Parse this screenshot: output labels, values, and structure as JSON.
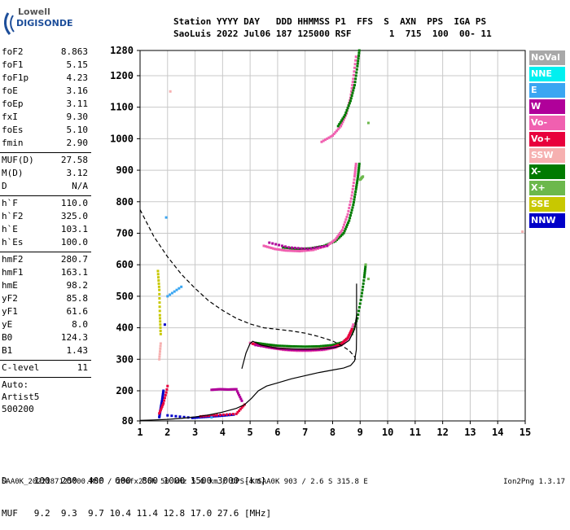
{
  "logo": {
    "line1": "Lowell",
    "line2": "DIGISONDE"
  },
  "header": {
    "line1": "Station YYYY DAY   DDD HHMMSS P1  FFS  S  AXN  PPS  IGA PS",
    "line2": "SaoLuis 2022 Jul06 187 125000 RSF       1  715  100  00- 11"
  },
  "params": [
    {
      "label": "foF2",
      "value": "8.863"
    },
    {
      "label": "foF1",
      "value": "5.15"
    },
    {
      "label": "foF1p",
      "value": "4.23"
    },
    {
      "label": "foE",
      "value": "3.16"
    },
    {
      "label": "foEp",
      "value": "3.11"
    },
    {
      "label": "fxI",
      "value": "9.30"
    },
    {
      "label": "foEs",
      "value": "5.10"
    },
    {
      "label": "fmin",
      "value": "2.90"
    },
    {
      "sep": true
    },
    {
      "label": "MUF(D)",
      "value": "27.58"
    },
    {
      "label": "M(D)",
      "value": "3.12"
    },
    {
      "label": "D",
      "value": "N/A"
    },
    {
      "sep": true
    },
    {
      "label": "h`F",
      "value": "110.0"
    },
    {
      "label": "h`F2",
      "value": "325.0"
    },
    {
      "label": "h`E",
      "value": "103.1"
    },
    {
      "label": "h`Es",
      "value": "100.0"
    },
    {
      "sep": true
    },
    {
      "label": "hmF2",
      "value": "280.7"
    },
    {
      "label": "hmF1",
      "value": "163.1"
    },
    {
      "label": "hmE",
      "value": "98.2"
    },
    {
      "label": "yF2",
      "value": "85.8"
    },
    {
      "label": "yF1",
      "value": "61.6"
    },
    {
      "label": "yE",
      "value": "8.0"
    },
    {
      "label": "B0",
      "value": "124.3"
    },
    {
      "label": "B1",
      "value": "1.43"
    },
    {
      "sep": true
    },
    {
      "label": "C-level",
      "value": "11"
    },
    {
      "sep": true
    },
    {
      "text": "Auto:"
    },
    {
      "text": "Artist5"
    },
    {
      "text": "500200"
    }
  ],
  "legend": [
    {
      "label": "NoVal",
      "color": "#a8a8a8"
    },
    {
      "label": "NNE",
      "color": "#00f0f0"
    },
    {
      "label": "E",
      "color": "#3aa6f2"
    },
    {
      "label": "W",
      "color": "#b0009a"
    },
    {
      "label": "Vo-",
      "color": "#f060b0"
    },
    {
      "label": "Vo+",
      "color": "#e8003c"
    },
    {
      "label": "SSW",
      "color": "#f6b0b0"
    },
    {
      "label": "X-",
      "color": "#007a00"
    },
    {
      "label": "X+",
      "color": "#6cb84c"
    },
    {
      "label": "SSE",
      "color": "#c8c800"
    },
    {
      "label": "NNW",
      "color": "#0000c8"
    }
  ],
  "bottom": {
    "row1": "D     100  200  400  600  800 1000 1500 3000 [km]",
    "row2": "MUF   9.2  9.3  9.7 10.4 11.4 12.8 17.0 27.6 [MHz]"
  },
  "footer": {
    "left": "SAA0K_2022187125000.RSF / 280fx256h 50 kHz 5.0 km / DPS-4 SAA0K 903 / 2.6 S 315.8 E",
    "right": "Ion2Png 1.3.17"
  },
  "chart_data": {
    "type": "scatter",
    "xlim": [
      1,
      15
    ],
    "ylim": [
      80,
      1280
    ],
    "x_ticks": [
      "1",
      "2",
      "3",
      "4",
      "5",
      "6",
      "7",
      "8",
      "9",
      "10",
      "11",
      "12",
      "13",
      "14",
      "15"
    ],
    "y_ticks": [
      "80",
      "200",
      "300",
      "400",
      "500",
      "600",
      "700",
      "800",
      "900",
      "1000",
      "1100",
      "1200",
      "1280"
    ],
    "grid": true,
    "lines": [
      {
        "style": "solid",
        "points": [
          [
            1.0,
            82
          ],
          [
            1.5,
            84
          ],
          [
            2.0,
            86
          ],
          [
            2.5,
            90
          ],
          [
            3.0,
            96
          ],
          [
            3.5,
            104
          ],
          [
            4.0,
            115
          ],
          [
            4.5,
            130
          ],
          [
            4.8,
            145
          ],
          [
            5.05,
            170
          ],
          [
            5.3,
            200
          ],
          [
            5.6,
            215
          ],
          [
            6.0,
            225
          ],
          [
            6.5,
            238
          ],
          [
            7.0,
            248
          ],
          [
            7.5,
            258
          ],
          [
            8.0,
            266
          ],
          [
            8.4,
            272
          ],
          [
            8.65,
            280
          ],
          [
            8.8,
            295
          ],
          [
            8.86,
            330
          ],
          [
            8.87,
            380
          ],
          [
            8.87,
            440
          ],
          [
            8.87,
            540
          ]
        ]
      },
      {
        "style": "solid",
        "points": [
          [
            4.7,
            270
          ],
          [
            4.85,
            320
          ],
          [
            5.0,
            350
          ],
          [
            5.1,
            357
          ],
          [
            5.4,
            345
          ],
          [
            6.0,
            335
          ],
          [
            6.5,
            333
          ],
          [
            7.0,
            332
          ],
          [
            7.5,
            333
          ],
          [
            8.0,
            336
          ],
          [
            8.3,
            342
          ],
          [
            8.6,
            360
          ],
          [
            8.8,
            395
          ],
          [
            8.87,
            440
          ]
        ]
      },
      {
        "style": "dashed",
        "points": [
          [
            1.0,
            775
          ],
          [
            1.5,
            690
          ],
          [
            2.0,
            625
          ],
          [
            2.5,
            570
          ],
          [
            3.0,
            525
          ],
          [
            3.5,
            485
          ],
          [
            4.0,
            455
          ],
          [
            4.5,
            430
          ],
          [
            5.0,
            412
          ],
          [
            5.5,
            400
          ],
          [
            6.0,
            395
          ],
          [
            6.5,
            390
          ],
          [
            7.0,
            383
          ],
          [
            7.5,
            372
          ],
          [
            8.0,
            358
          ],
          [
            8.3,
            345
          ],
          [
            8.6,
            328
          ],
          [
            8.8,
            308
          ],
          [
            8.85,
            295
          ]
        ]
      }
    ],
    "traces": [
      {
        "series": "X-",
        "color": "#007a00",
        "points": [
          [
            5.2,
            352
          ],
          [
            5.6,
            347
          ],
          [
            6.0,
            343
          ],
          [
            6.5,
            341
          ],
          [
            7.0,
            340
          ],
          [
            7.5,
            341
          ],
          [
            8.0,
            345
          ],
          [
            8.4,
            355
          ],
          [
            8.7,
            380
          ],
          [
            8.9,
            430
          ],
          [
            9.05,
            500
          ],
          [
            9.15,
            560
          ],
          [
            9.2,
            600
          ]
        ]
      },
      {
        "series": "Vo-",
        "color": "#f060b0",
        "points": [
          [
            5.0,
            352
          ],
          [
            5.3,
            345
          ],
          [
            5.7,
            337
          ],
          [
            6.2,
            330
          ],
          [
            6.7,
            327
          ],
          [
            7.2,
            327
          ],
          [
            7.7,
            330
          ],
          [
            8.1,
            337
          ],
          [
            8.4,
            350
          ],
          [
            8.6,
            370
          ],
          [
            8.75,
            410
          ]
        ]
      },
      {
        "series": "Vo+",
        "color": "#e8003c",
        "points": [
          [
            5.1,
            349
          ],
          [
            5.5,
            341
          ],
          [
            6.0,
            334
          ],
          [
            6.5,
            331
          ],
          [
            7.0,
            330
          ],
          [
            7.5,
            332
          ],
          [
            8.0,
            338
          ],
          [
            8.3,
            348
          ],
          [
            8.55,
            368
          ],
          [
            8.7,
            395
          ]
        ]
      },
      {
        "series": "W",
        "color": "#b0009a",
        "points": [
          [
            5.2,
            345
          ],
          [
            5.8,
            336
          ],
          [
            6.4,
            330
          ],
          [
            7.0,
            329
          ],
          [
            7.6,
            331
          ],
          [
            8.1,
            339
          ]
        ]
      },
      {
        "series": "X-",
        "color": "#007a00",
        "points": [
          [
            6.2,
            655
          ],
          [
            6.7,
            650
          ],
          [
            7.2,
            652
          ],
          [
            7.7,
            660
          ],
          [
            8.1,
            675
          ],
          [
            8.4,
            700
          ],
          [
            8.6,
            740
          ],
          [
            8.75,
            790
          ],
          [
            8.85,
            840
          ],
          [
            8.92,
            880
          ],
          [
            8.97,
            920
          ]
        ]
      },
      {
        "series": "Vo-",
        "color": "#f060b0",
        "points": [
          [
            5.5,
            660
          ],
          [
            5.9,
            650
          ],
          [
            6.3,
            645
          ],
          [
            6.8,
            643
          ],
          [
            7.3,
            647
          ],
          [
            7.8,
            660
          ],
          [
            8.1,
            680
          ],
          [
            8.35,
            710
          ],
          [
            8.55,
            760
          ],
          [
            8.7,
            820
          ],
          [
            8.8,
            880
          ],
          [
            8.85,
            920
          ]
        ]
      },
      {
        "series": "W",
        "color": "#b0009a",
        "points": [
          [
            5.7,
            670
          ],
          [
            6.4,
            655
          ],
          [
            7.1,
            650
          ],
          [
            7.8,
            660
          ]
        ]
      },
      {
        "series": "Vo-",
        "color": "#f060b0",
        "points": [
          [
            7.6,
            990
          ],
          [
            8.0,
            1010
          ],
          [
            8.3,
            1040
          ],
          [
            8.5,
            1080
          ],
          [
            8.65,
            1130
          ],
          [
            8.75,
            1190
          ],
          [
            8.85,
            1260
          ]
        ]
      },
      {
        "series": "X-",
        "color": "#007a00",
        "points": [
          [
            8.2,
            1040
          ],
          [
            8.45,
            1075
          ],
          [
            8.65,
            1120
          ],
          [
            8.8,
            1170
          ],
          [
            8.9,
            1230
          ],
          [
            8.97,
            1280
          ]
        ]
      },
      {
        "series": "X+",
        "color": "#6cb84c",
        "points": [
          [
            9.0,
            870
          ],
          [
            9.1,
            880
          ],
          [
            9.2,
            600
          ],
          [
            9.3,
            1050
          ],
          [
            9.3,
            555
          ]
        ]
      },
      {
        "series": "NNW",
        "color": "#0000c8",
        "points": [
          [
            1.7,
            95
          ],
          [
            1.75,
            130
          ],
          [
            1.8,
            160
          ],
          [
            1.85,
            200
          ],
          [
            1.9,
            410
          ],
          [
            2.0,
            102
          ],
          [
            2.9,
            92
          ],
          [
            3.4,
            96
          ],
          [
            3.9,
            100
          ],
          [
            4.4,
            105
          ]
        ]
      },
      {
        "series": "Vo+",
        "color": "#e8003c",
        "points": [
          [
            1.7,
            110
          ],
          [
            1.85,
            150
          ],
          [
            2.0,
            215
          ],
          [
            3.2,
            98
          ],
          [
            3.8,
            103
          ],
          [
            4.5,
            108
          ],
          [
            4.8,
            145
          ]
        ]
      },
      {
        "series": "E",
        "color": "#3aa6f2",
        "points": [
          [
            1.95,
            750
          ],
          [
            2.0,
            500
          ],
          [
            2.5,
            530
          ],
          [
            3.6,
            94
          ]
        ]
      },
      {
        "series": "SSE",
        "color": "#c8c800",
        "points": [
          [
            1.65,
            580
          ],
          [
            1.7,
            520
          ],
          [
            1.72,
            440
          ],
          [
            1.75,
            380
          ]
        ]
      },
      {
        "series": "SSW",
        "color": "#f6b0b0",
        "points": [
          [
            1.7,
            300
          ],
          [
            1.75,
            350
          ],
          [
            2.1,
            1150
          ],
          [
            14.9,
            705
          ]
        ]
      },
      {
        "series": "W",
        "color": "#b0009a",
        "points": [
          [
            3.6,
            203
          ],
          [
            3.9,
            205
          ],
          [
            4.2,
            204
          ],
          [
            4.5,
            205
          ],
          [
            4.7,
            160
          ]
        ]
      }
    ]
  }
}
